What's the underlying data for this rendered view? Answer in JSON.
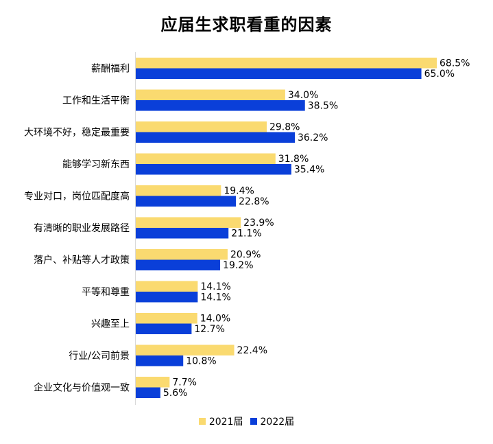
{
  "chart_data": {
    "type": "bar",
    "orientation": "horizontal",
    "title": "应届生求职看重的因素",
    "categories": [
      "薪酬福利",
      "工作和生活平衡",
      "大环境不好，稳定最重要",
      "能够学习新东西",
      "专业对口，岗位匹配度高",
      "有清晰的职业发展路径",
      "落户、补贴等人才政策",
      "平等和尊重",
      "兴趣至上",
      "行业/公司前景",
      "企业文化与价值观一致"
    ],
    "series": [
      {
        "name": "2021届",
        "color": "#FADA70",
        "values": [
          68.5,
          34.0,
          29.8,
          31.8,
          19.4,
          23.9,
          20.9,
          14.1,
          14.0,
          22.4,
          7.7
        ]
      },
      {
        "name": "2022届",
        "color": "#0A3FD9",
        "values": [
          65.0,
          38.5,
          36.2,
          35.4,
          22.8,
          21.1,
          19.2,
          14.1,
          12.7,
          10.8,
          5.6
        ]
      }
    ],
    "value_suffix": "%",
    "xlim": [
      0,
      70
    ],
    "grid": false,
    "legend_position": "bottom"
  }
}
